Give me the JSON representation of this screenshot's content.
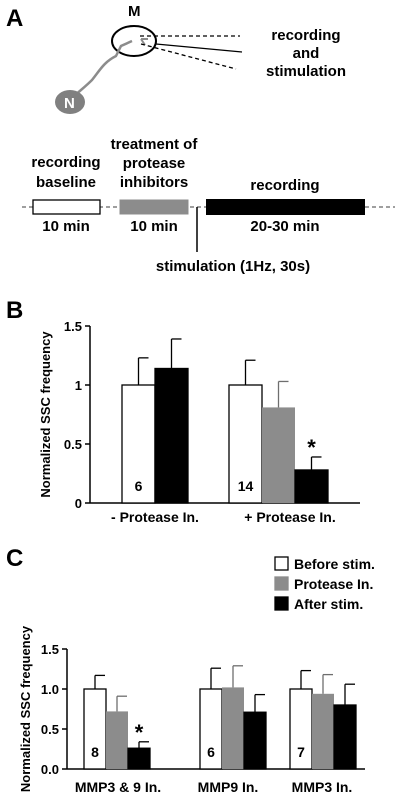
{
  "colors": {
    "before": "#ffffff",
    "protease": "#8c8c8c",
    "after": "#000000",
    "neuron": "#808080"
  },
  "panelA": {
    "letter": "A",
    "label_M": "M",
    "label_N": "N",
    "rec_stim_line1": "recording",
    "rec_stim_line2": "and",
    "rec_stim_line3": "stimulation",
    "baseline_line1": "recording",
    "baseline_line2": "baseline",
    "treat_line1": "treatment of",
    "treat_line2": "protease",
    "treat_line3": "inhibitors",
    "recording_label": "recording",
    "dur_baseline": "10 min",
    "dur_treat": "10 min",
    "dur_recording": "20-30 min",
    "stim_label": "stimulation (1Hz, 30s)"
  },
  "chart_data": [
    {
      "panel": "B",
      "type": "bar",
      "ylabel": "Normalized SSC frequency",
      "ylim": [
        0,
        1.5
      ],
      "yticks": [
        "0",
        "0.5",
        "1",
        "1.5"
      ],
      "categories": [
        "- Protease In.",
        "+ Protease In."
      ],
      "series": [
        {
          "values": [
            1.0,
            1.0
          ],
          "errors": [
            0.23,
            0.21
          ]
        },
        {
          "values": [
            null,
            0.81
          ],
          "errors": [
            null,
            0.22
          ]
        },
        {
          "values": [
            1.14,
            0.28
          ],
          "errors": [
            0.25,
            0.11
          ]
        }
      ],
      "n_labels": [
        "6",
        "14"
      ],
      "significance": [
        {
          "category": 1,
          "series": 2,
          "mark": "*"
        }
      ]
    },
    {
      "panel": "C",
      "type": "bar",
      "ylabel": "Normalized SSC frequency",
      "ylim": [
        0,
        1.5
      ],
      "yticks": [
        "0.0",
        "0.5",
        "1.0",
        "1.5"
      ],
      "categories": [
        "MMP3 & 9 In.",
        "MMP9 In.",
        "MMP3 In."
      ],
      "legend": [
        "Before stim.",
        "Protease In.",
        "After stim."
      ],
      "legend_position": "top-right",
      "series": [
        {
          "name": "Before stim.",
          "values": [
            1.0,
            1.0,
            1.0
          ],
          "errors": [
            0.17,
            0.26,
            0.23
          ]
        },
        {
          "name": "Protease In.",
          "values": [
            0.72,
            1.02,
            0.94
          ],
          "errors": [
            0.19,
            0.27,
            0.24
          ]
        },
        {
          "name": "After stim.",
          "values": [
            0.26,
            0.71,
            0.8
          ],
          "errors": [
            0.08,
            0.22,
            0.26
          ]
        }
      ],
      "n_labels": [
        "8",
        "6",
        "7"
      ],
      "significance": [
        {
          "category": 0,
          "series": 2,
          "mark": "*"
        }
      ]
    }
  ]
}
